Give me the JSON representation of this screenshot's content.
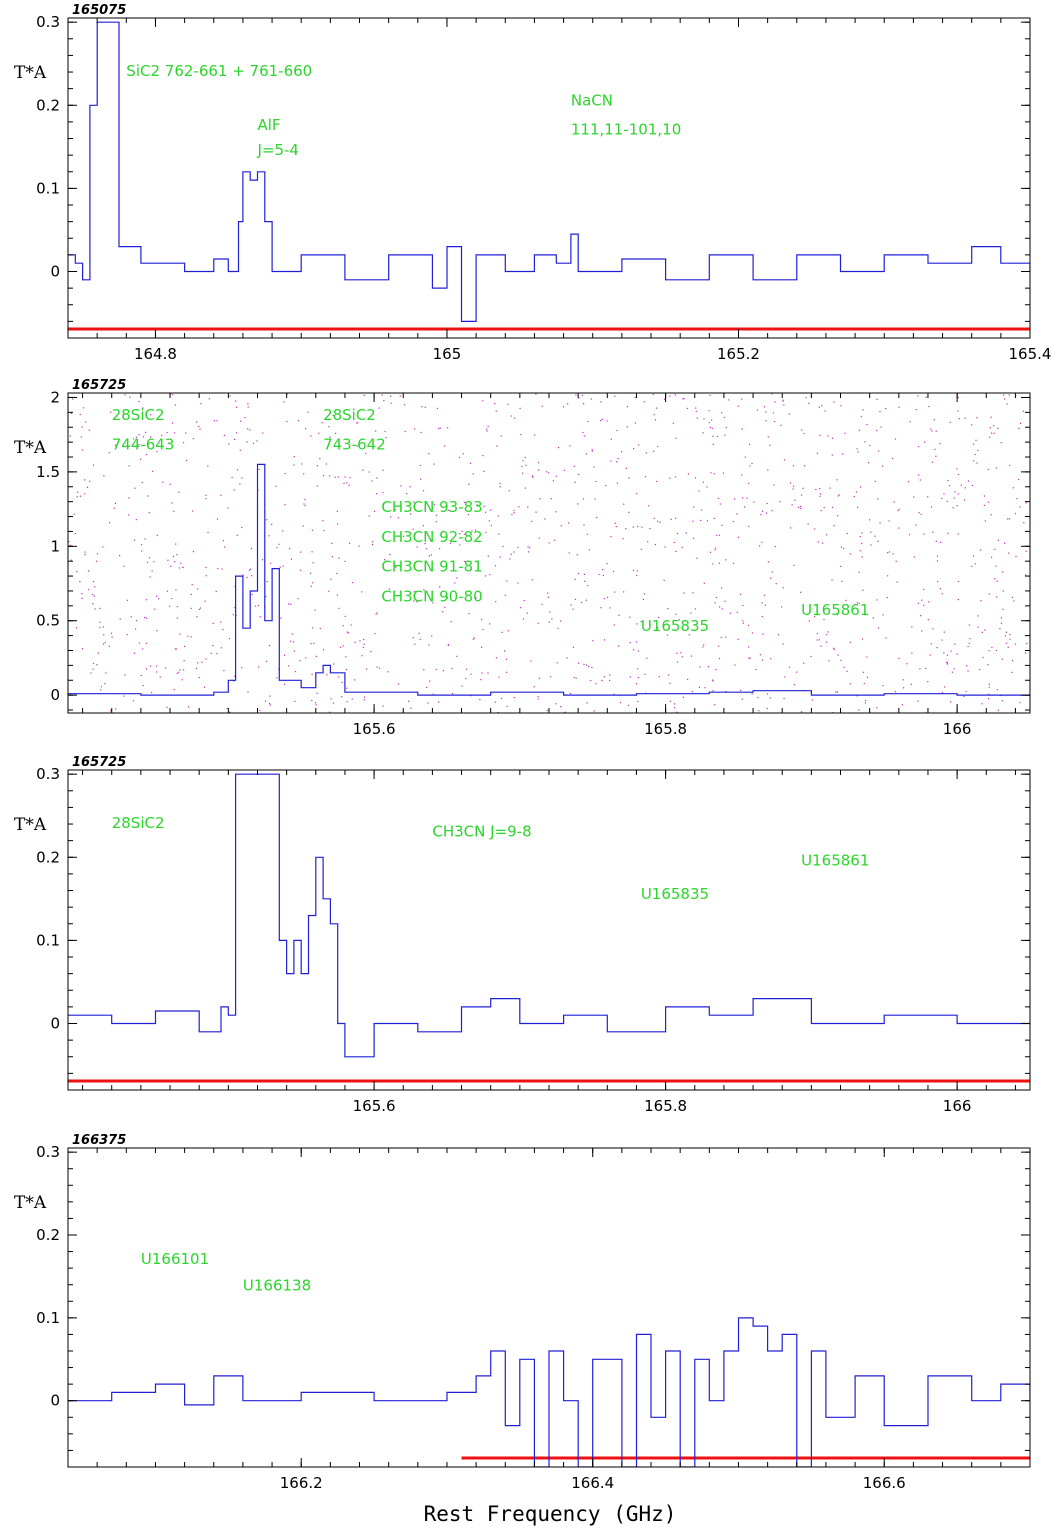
{
  "chart_data": [
    {
      "type": "line",
      "panel_label": "165075",
      "ylabel": "T*A",
      "x_range": [
        164.74,
        165.4
      ],
      "ylim": [
        -0.08,
        0.305
      ],
      "x_ticks": [
        "164.8",
        "165",
        "165.2",
        "165.4"
      ],
      "x_tick_values": [
        164.8,
        165.0,
        165.2,
        165.4
      ],
      "y_ticks": [
        "0",
        "0.1",
        "0.2",
        "0.3"
      ],
      "y_tick_values": [
        0,
        0.1,
        0.2,
        0.3
      ],
      "baseline_y": -0.082,
      "baseline_x": [
        164.74,
        165.4
      ],
      "series": [
        {
          "values": [
            [
              164.74,
              0.02
            ],
            [
              164.745,
              0.01
            ],
            [
              164.75,
              -0.01
            ],
            [
              164.755,
              0.2
            ],
            [
              164.76,
              0.3
            ],
            [
              164.77,
              0.3
            ],
            [
              164.775,
              0.03
            ],
            [
              164.79,
              0.01
            ],
            [
              164.82,
              0.0
            ],
            [
              164.84,
              0.015
            ],
            [
              164.85,
              0.0
            ],
            [
              164.857,
              0.06
            ],
            [
              164.86,
              0.12
            ],
            [
              164.865,
              0.11
            ],
            [
              164.87,
              0.12
            ],
            [
              164.875,
              0.06
            ],
            [
              164.88,
              0.0
            ],
            [
              164.9,
              0.02
            ],
            [
              164.93,
              -0.01
            ],
            [
              164.96,
              0.02
            ],
            [
              164.99,
              -0.02
            ],
            [
              165.0,
              0.03
            ],
            [
              165.01,
              -0.06
            ],
            [
              165.02,
              0.02
            ],
            [
              165.04,
              0.0
            ],
            [
              165.06,
              0.02
            ],
            [
              165.075,
              0.01
            ],
            [
              165.085,
              0.045
            ],
            [
              165.09,
              0.0
            ],
            [
              165.12,
              0.015
            ],
            [
              165.15,
              -0.01
            ],
            [
              165.18,
              0.02
            ],
            [
              165.21,
              -0.01
            ],
            [
              165.24,
              0.02
            ],
            [
              165.27,
              0.0
            ],
            [
              165.3,
              0.02
            ],
            [
              165.33,
              0.01
            ],
            [
              165.36,
              0.03
            ],
            [
              165.38,
              0.01
            ],
            [
              165.4,
              0.0
            ]
          ]
        }
      ],
      "annotations": [
        {
          "text": "SiC2  762-661 + 761-660",
          "x": 164.78,
          "y": 0.235
        },
        {
          "text": "AlF",
          "x": 164.87,
          "y": 0.17
        },
        {
          "text": "J=5-4",
          "x": 164.87,
          "y": 0.14
        },
        {
          "text": "NaCN",
          "x": 165.085,
          "y": 0.2
        },
        {
          "text": "111,11-101,10",
          "x": 165.085,
          "y": 0.165
        }
      ]
    },
    {
      "type": "line",
      "panel_label": "165725",
      "ylabel": "T*A",
      "x_range": [
        165.39,
        166.05
      ],
      "ylim": [
        -0.12,
        2.03
      ],
      "x_ticks": [
        "165.6",
        "165.8",
        "166"
      ],
      "x_tick_values": [
        165.6,
        165.8,
        166.0
      ],
      "y_ticks": [
        "0",
        "0.5",
        "1",
        "1.5",
        "2"
      ],
      "y_tick_values": [
        0,
        0.5,
        1,
        1.5,
        2
      ],
      "series": [
        {
          "values": [
            [
              165.39,
              0.01
            ],
            [
              165.44,
              0.0
            ],
            [
              165.49,
              0.02
            ],
            [
              165.5,
              0.1
            ],
            [
              165.505,
              0.8
            ],
            [
              165.51,
              0.45
            ],
            [
              165.515,
              0.7
            ],
            [
              165.52,
              1.55
            ],
            [
              165.525,
              0.5
            ],
            [
              165.53,
              0.85
            ],
            [
              165.535,
              0.1
            ],
            [
              165.55,
              0.05
            ],
            [
              165.56,
              0.15
            ],
            [
              165.565,
              0.2
            ],
            [
              165.57,
              0.15
            ],
            [
              165.58,
              0.02
            ],
            [
              165.63,
              0.0
            ],
            [
              165.68,
              0.02
            ],
            [
              165.73,
              0.0
            ],
            [
              165.78,
              0.01
            ],
            [
              165.83,
              0.02
            ],
            [
              165.86,
              0.03
            ],
            [
              165.9,
              0.0
            ],
            [
              165.95,
              0.01
            ],
            [
              166.0,
              0.0
            ],
            [
              166.05,
              0.01
            ]
          ]
        }
      ],
      "annotations": [
        {
          "text": "28SiC2",
          "x": 165.42,
          "y": 1.85
        },
        {
          "text": "744-643",
          "x": 165.42,
          "y": 1.65
        },
        {
          "text": "28SiC2",
          "x": 165.565,
          "y": 1.85
        },
        {
          "text": "743-642",
          "x": 165.565,
          "y": 1.65
        },
        {
          "text": "CH3CN 93-83",
          "x": 165.605,
          "y": 1.23
        },
        {
          "text": "CH3CN 92-82",
          "x": 165.605,
          "y": 1.03
        },
        {
          "text": "CH3CN 91-81",
          "x": 165.605,
          "y": 0.83
        },
        {
          "text": "CH3CN 90-80",
          "x": 165.605,
          "y": 0.63
        },
        {
          "text": "U165835",
          "x": 165.783,
          "y": 0.43
        },
        {
          "text": "U165861",
          "x": 165.893,
          "y": 0.54
        }
      ]
    },
    {
      "type": "line",
      "panel_label": "165725",
      "ylabel": "T*A",
      "x_range": [
        165.39,
        166.05
      ],
      "ylim": [
        -0.08,
        0.305
      ],
      "x_ticks": [
        "165.6",
        "165.8",
        "166"
      ],
      "x_tick_values": [
        165.6,
        165.8,
        166.0
      ],
      "y_ticks": [
        "0",
        "0.1",
        "0.2",
        "0.3"
      ],
      "y_tick_values": [
        0,
        0.1,
        0.2,
        0.3
      ],
      "baseline_y": -0.082,
      "baseline_x": [
        165.39,
        166.05
      ],
      "series": [
        {
          "values": [
            [
              165.39,
              0.01
            ],
            [
              165.42,
              0.0
            ],
            [
              165.45,
              0.015
            ],
            [
              165.48,
              -0.01
            ],
            [
              165.495,
              0.02
            ],
            [
              165.5,
              0.01
            ],
            [
              165.505,
              0.3
            ],
            [
              165.53,
              0.3
            ],
            [
              165.535,
              0.1
            ],
            [
              165.54,
              0.06
            ],
            [
              165.545,
              0.1
            ],
            [
              165.55,
              0.06
            ],
            [
              165.555,
              0.13
            ],
            [
              165.56,
              0.2
            ],
            [
              165.565,
              0.15
            ],
            [
              165.57,
              0.12
            ],
            [
              165.575,
              0.0
            ],
            [
              165.58,
              -0.04
            ],
            [
              165.6,
              0.0
            ],
            [
              165.63,
              -0.01
            ],
            [
              165.66,
              0.02
            ],
            [
              165.68,
              0.03
            ],
            [
              165.7,
              0.0
            ],
            [
              165.73,
              0.01
            ],
            [
              165.76,
              -0.01
            ],
            [
              165.8,
              0.02
            ],
            [
              165.83,
              0.01
            ],
            [
              165.86,
              0.03
            ],
            [
              165.9,
              0.0
            ],
            [
              165.95,
              0.01
            ],
            [
              166.0,
              0.0
            ],
            [
              166.05,
              0.0
            ]
          ]
        }
      ],
      "annotations": [
        {
          "text": "28SiC2",
          "x": 165.42,
          "y": 0.235
        },
        {
          "text": "CH3CN J=9-8",
          "x": 165.64,
          "y": 0.225
        },
        {
          "text": "U165835",
          "x": 165.783,
          "y": 0.15
        },
        {
          "text": "U165861",
          "x": 165.893,
          "y": 0.19
        }
      ]
    },
    {
      "type": "line",
      "panel_label": "166375",
      "ylabel": "T*A",
      "x_range": [
        166.04,
        166.7
      ],
      "ylim": [
        -0.08,
        0.305
      ],
      "x_ticks": [
        "166.2",
        "166.4",
        "166.6"
      ],
      "x_tick_values": [
        166.2,
        166.4,
        166.6
      ],
      "y_ticks": [
        "0",
        "0.1",
        "0.2",
        "0.3"
      ],
      "y_tick_values": [
        0,
        0.1,
        0.2,
        0.3
      ],
      "baseline_y": -0.082,
      "baseline_x": [
        166.31,
        166.7
      ],
      "series": [
        {
          "values": [
            [
              166.04,
              0.0
            ],
            [
              166.07,
              0.01
            ],
            [
              166.1,
              0.02
            ],
            [
              166.12,
              -0.005
            ],
            [
              166.14,
              0.03
            ],
            [
              166.16,
              0.0
            ],
            [
              166.2,
              0.01
            ],
            [
              166.25,
              0.0
            ],
            [
              166.3,
              0.01
            ],
            [
              166.32,
              0.03
            ],
            [
              166.33,
              0.06
            ],
            [
              166.34,
              -0.03
            ],
            [
              166.35,
              0.05
            ],
            [
              166.36,
              -0.08
            ],
            [
              166.37,
              0.06
            ],
            [
              166.38,
              0.0
            ],
            [
              166.39,
              -0.08
            ],
            [
              166.4,
              0.05
            ],
            [
              166.42,
              -0.08
            ],
            [
              166.43,
              0.08
            ],
            [
              166.44,
              -0.02
            ],
            [
              166.45,
              0.06
            ],
            [
              166.46,
              -0.08
            ],
            [
              166.47,
              0.05
            ],
            [
              166.48,
              0.0
            ],
            [
              166.49,
              0.06
            ],
            [
              166.5,
              0.1
            ],
            [
              166.51,
              0.09
            ],
            [
              166.52,
              0.06
            ],
            [
              166.53,
              0.08
            ],
            [
              166.54,
              -0.08
            ],
            [
              166.55,
              0.06
            ],
            [
              166.56,
              -0.02
            ],
            [
              166.58,
              0.03
            ],
            [
              166.6,
              -0.03
            ],
            [
              166.63,
              0.03
            ],
            [
              166.66,
              0.0
            ],
            [
              166.68,
              0.02
            ],
            [
              166.7,
              0.0
            ]
          ]
        }
      ],
      "annotations": [
        {
          "text": "U166101",
          "x": 166.09,
          "y": 0.165
        },
        {
          "text": "U166138",
          "x": 166.16,
          "y": 0.133
        }
      ]
    }
  ],
  "xlabel": "Rest Frequency (GHz)",
  "colors": {
    "spectrum": "#2020d8",
    "annotation": "#2bd62b",
    "baseline": "#ee1111",
    "noise": "#c030c0",
    "axis": "#000000"
  }
}
